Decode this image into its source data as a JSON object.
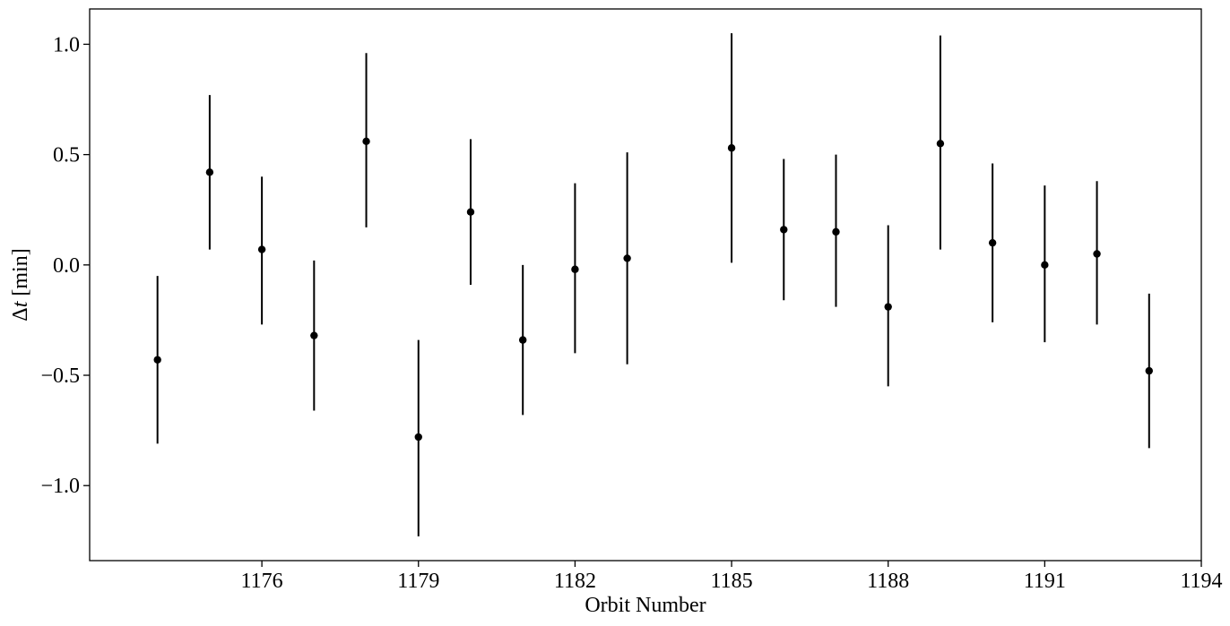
{
  "chart_data": {
    "type": "scatter",
    "title": "",
    "xlabel": "Orbit Number",
    "ylabel_symbol": "Δ",
    "ylabel_var": "t",
    "ylabel_unit": " [min]",
    "xlim": [
      1172.7,
      1194.0
    ],
    "ylim": [
      -1.34,
      1.16
    ],
    "x_ticks": [
      1176,
      1179,
      1182,
      1185,
      1188,
      1191,
      1194
    ],
    "y_ticks": [
      1.0,
      0.5,
      0.0,
      -0.5,
      -1.0
    ],
    "x_tick_labels": [
      "1176",
      "1179",
      "1182",
      "1185",
      "1188",
      "1191",
      "1194"
    ],
    "y_tick_labels": [
      "1.0",
      "0.5",
      "0.0",
      "−0.5",
      "−1.0"
    ],
    "grid": false,
    "legend": "none",
    "marker_color": "#000000",
    "points": [
      {
        "x": 1174,
        "y": -0.43,
        "err_low": -0.81,
        "err_high": -0.05
      },
      {
        "x": 1175,
        "y": 0.42,
        "err_low": 0.07,
        "err_high": 0.77
      },
      {
        "x": 1176,
        "y": 0.07,
        "err_low": -0.27,
        "err_high": 0.4
      },
      {
        "x": 1177,
        "y": -0.32,
        "err_low": -0.66,
        "err_high": 0.02
      },
      {
        "x": 1178,
        "y": 0.56,
        "err_low": 0.17,
        "err_high": 0.96
      },
      {
        "x": 1179,
        "y": -0.78,
        "err_low": -1.23,
        "err_high": -0.34
      },
      {
        "x": 1180,
        "y": 0.24,
        "err_low": -0.09,
        "err_high": 0.57
      },
      {
        "x": 1181,
        "y": -0.34,
        "err_low": -0.68,
        "err_high": 0.0
      },
      {
        "x": 1182,
        "y": -0.02,
        "err_low": -0.4,
        "err_high": 0.37
      },
      {
        "x": 1183,
        "y": 0.03,
        "err_low": -0.45,
        "err_high": 0.51
      },
      {
        "x": 1185,
        "y": 0.53,
        "err_low": 0.01,
        "err_high": 1.05
      },
      {
        "x": 1186,
        "y": 0.16,
        "err_low": -0.16,
        "err_high": 0.48
      },
      {
        "x": 1187,
        "y": 0.15,
        "err_low": -0.19,
        "err_high": 0.5
      },
      {
        "x": 1188,
        "y": -0.19,
        "err_low": -0.55,
        "err_high": 0.18
      },
      {
        "x": 1189,
        "y": 0.55,
        "err_low": 0.07,
        "err_high": 1.04
      },
      {
        "x": 1190,
        "y": 0.1,
        "err_low": -0.26,
        "err_high": 0.46
      },
      {
        "x": 1191,
        "y": 0.0,
        "err_low": -0.35,
        "err_high": 0.36
      },
      {
        "x": 1192,
        "y": 0.05,
        "err_low": -0.27,
        "err_high": 0.38
      },
      {
        "x": 1193,
        "y": -0.48,
        "err_low": -0.83,
        "err_high": -0.13
      }
    ]
  }
}
